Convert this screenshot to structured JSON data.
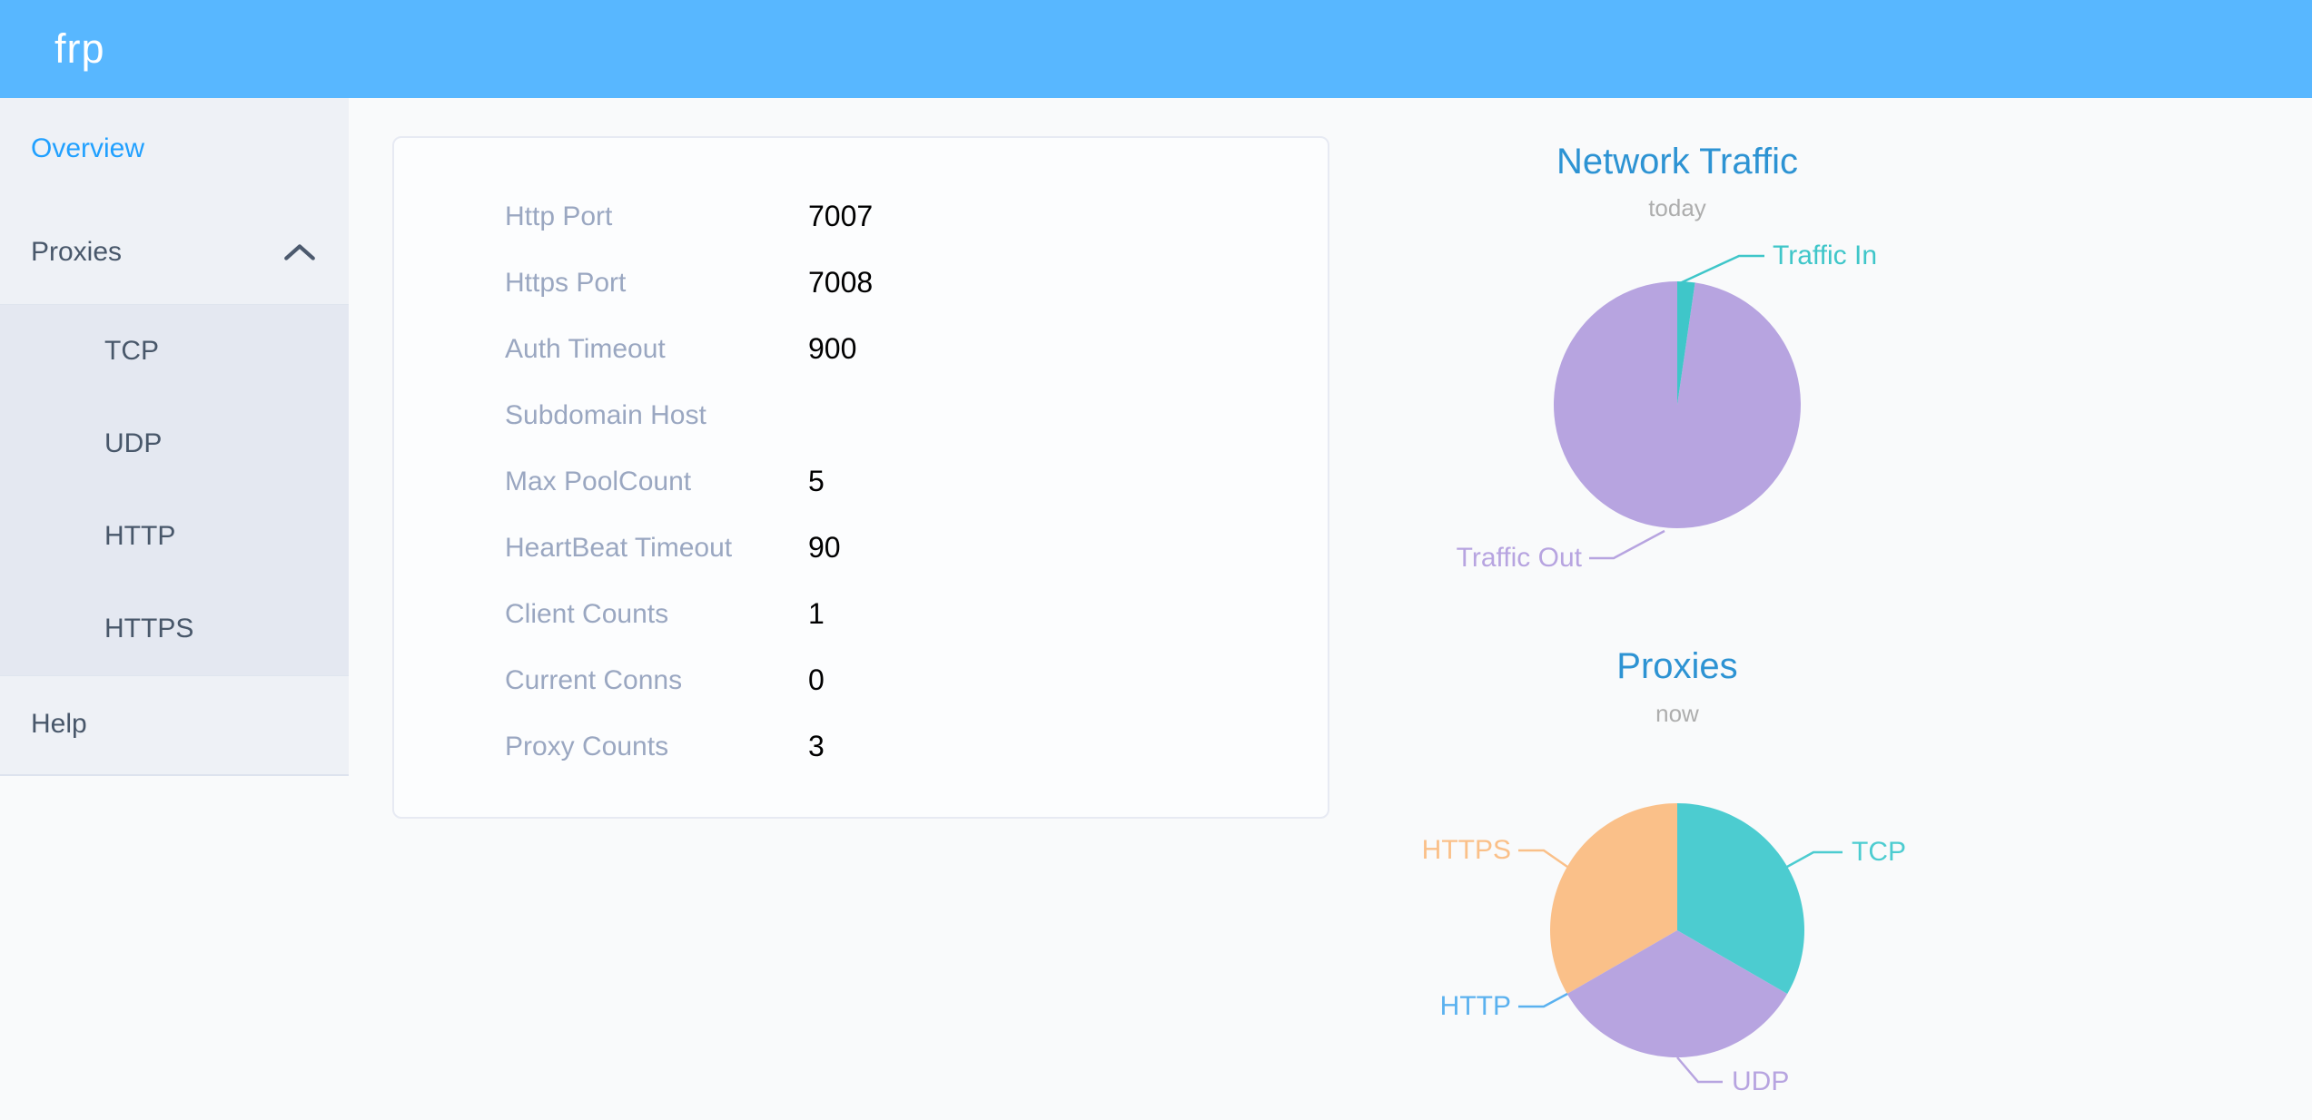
{
  "header": {
    "logo_text": "frp"
  },
  "sidebar": {
    "overview": "Overview",
    "proxies": "Proxies",
    "submenu": [
      "TCP",
      "UDP",
      "HTTP",
      "HTTPS"
    ],
    "help": "Help"
  },
  "server_config": {
    "rows": [
      {
        "label": "Http Port",
        "value": "7007"
      },
      {
        "label": "Https Port",
        "value": "7008"
      },
      {
        "label": "Auth Timeout",
        "value": "900"
      },
      {
        "label": "Subdomain Host",
        "value": ""
      },
      {
        "label": "Max PoolCount",
        "value": "5"
      },
      {
        "label": "HeartBeat Timeout",
        "value": "90"
      },
      {
        "label": "Client Counts",
        "value": "1"
      },
      {
        "label": "Current Conns",
        "value": "0"
      },
      {
        "label": "Proxy Counts",
        "value": "3"
      }
    ]
  },
  "chart_data": [
    {
      "type": "pie",
      "title": "Network Traffic",
      "subtitle": "today",
      "legend_position": "outside-leader-lines",
      "series": [
        {
          "name": "Traffic In",
          "value": 2.3,
          "color": "#3fc6c9"
        },
        {
          "name": "Traffic Out",
          "value": 97.7,
          "color": "#b7a4e0"
        }
      ],
      "values_unit": "estimated percent of pie"
    },
    {
      "type": "pie",
      "title": "Proxies",
      "subtitle": "now",
      "legend_position": "outside-leader-lines",
      "series": [
        {
          "name": "TCP",
          "value": 1,
          "color": "#4cccd0"
        },
        {
          "name": "UDP",
          "value": 1,
          "color": "#b7a4e0"
        },
        {
          "name": "HTTP",
          "value": 0,
          "color": "#5ab1ef"
        },
        {
          "name": "HTTPS",
          "value": 1,
          "color": "#fac089"
        }
      ],
      "values_unit": "proxy count"
    }
  ],
  "theme": {
    "header_bg": "#58b7ff",
    "sidebar_bg": "#eef1f6",
    "submenu_bg": "#e4e8f1",
    "menu_text": "#48576a",
    "menu_active": "#20a0ff",
    "chart_title": "#2d93d3",
    "chart_subtitle": "#adadad",
    "card_label": "#9aa7c1",
    "card_value": "#000000"
  }
}
